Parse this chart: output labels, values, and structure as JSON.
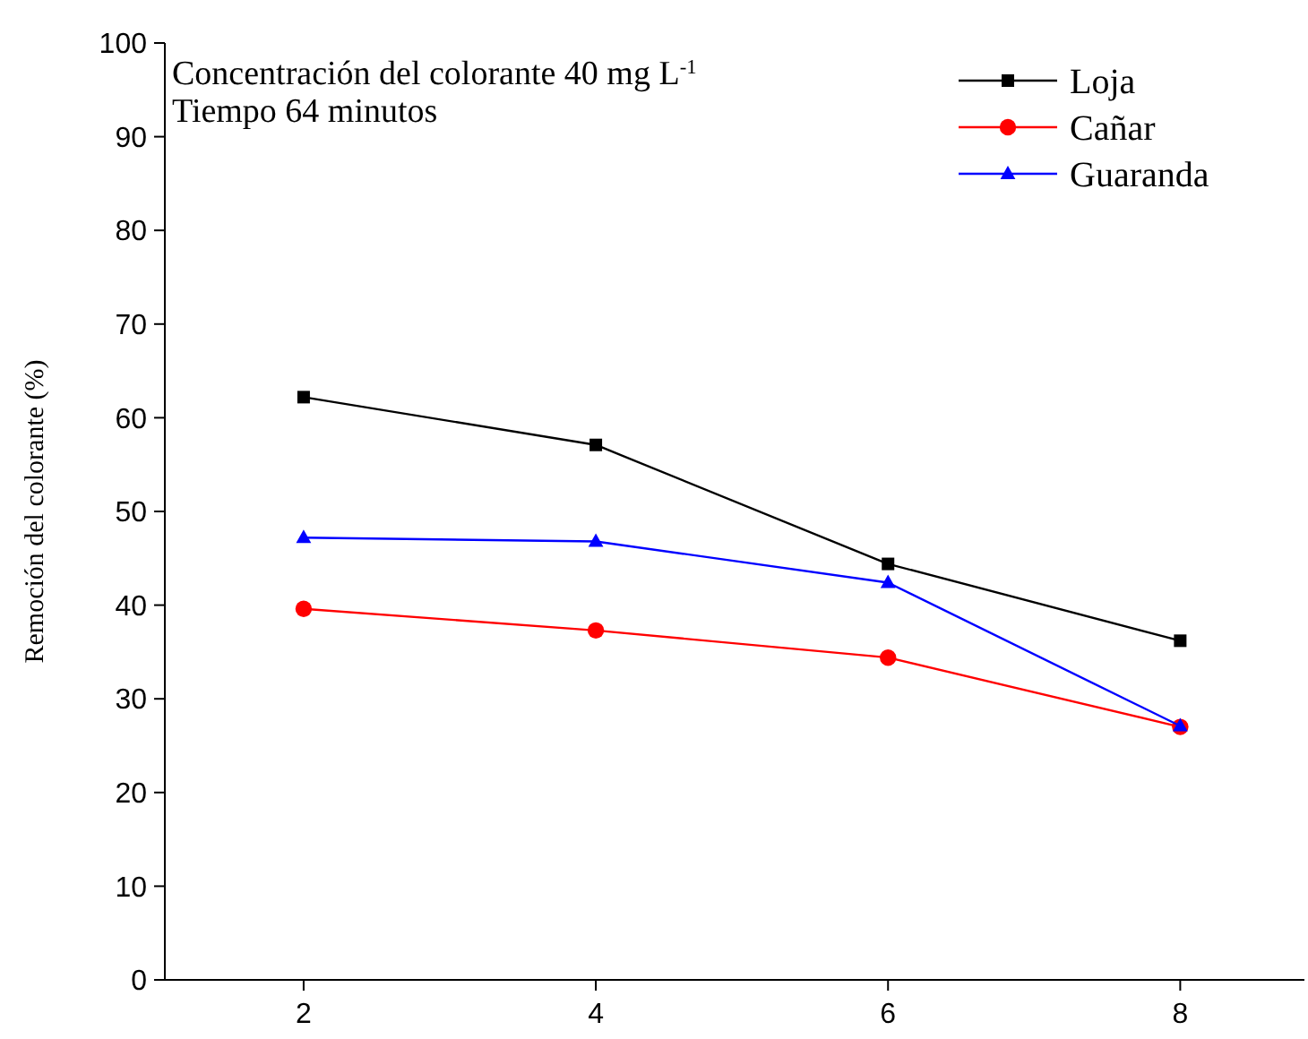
{
  "chart_data": {
    "type": "line",
    "ylabel": "Remoción del colorante (%)",
    "annotations": [
      "Concentración del colorante 40 mg L$^{-1}$",
      " Tiempo 64 minutos"
    ],
    "x": [
      2,
      4,
      6,
      8
    ],
    "series": [
      {
        "name": "Loja",
        "color": "#000000",
        "marker": "square",
        "values": [
          62.2,
          57.1,
          44.4,
          36.2
        ]
      },
      {
        "name": "Cañar",
        "color": "#ff0000",
        "marker": "circle",
        "values": [
          39.6,
          37.3,
          34.4,
          27.0
        ]
      },
      {
        "name": "Guaranda",
        "color": "#0000ff",
        "marker": "triangle",
        "values": [
          47.2,
          46.8,
          42.4,
          27.1
        ]
      }
    ],
    "xlim": [
      1.05,
      8.85
    ],
    "xticks": [
      2,
      4,
      6,
      8
    ],
    "ylim": [
      0,
      100
    ],
    "yticks": [
      0,
      10,
      20,
      30,
      40,
      50,
      60,
      70,
      80,
      90,
      100
    ],
    "legend": "top right",
    "line_style": "solid"
  }
}
